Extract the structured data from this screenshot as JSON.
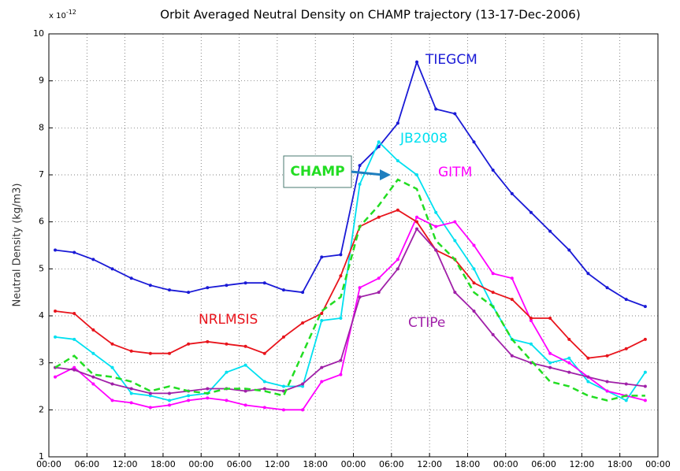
{
  "chart_data": {
    "type": "line",
    "title": "Orbit Averaged Neutral Density on CHAMP trajectory (13-17-Dec-2006)",
    "y_label": "Neutral Density (kg/m3)",
    "y_exponent": {
      "base": "x 10",
      "power": "-12"
    },
    "x": [
      1,
      4,
      7,
      10,
      13,
      16,
      19,
      22,
      25,
      28,
      31,
      34,
      37,
      40,
      43,
      46,
      49,
      52,
      55,
      58,
      61,
      64,
      67,
      70,
      73,
      76,
      79,
      82,
      85,
      88,
      91,
      94
    ],
    "xlim": [
      0,
      96
    ],
    "xticks": [
      {
        "value": 0,
        "label": "00:00"
      },
      {
        "value": 6,
        "label": "06:00"
      },
      {
        "value": 12,
        "label": "12:00"
      },
      {
        "value": 18,
        "label": "18:00"
      },
      {
        "value": 24,
        "label": "00:00"
      },
      {
        "value": 30,
        "label": "06:00"
      },
      {
        "value": 36,
        "label": "12:00"
      },
      {
        "value": 42,
        "label": "18:00"
      },
      {
        "value": 48,
        "label": "00:00"
      },
      {
        "value": 54,
        "label": "06:00"
      },
      {
        "value": 60,
        "label": "12:00"
      },
      {
        "value": 66,
        "label": "18:00"
      },
      {
        "value": 72,
        "label": "00:00"
      },
      {
        "value": 78,
        "label": "06:00"
      },
      {
        "value": 84,
        "label": "12:00"
      },
      {
        "value": 90,
        "label": "18:00"
      },
      {
        "value": 96,
        "label": "00:00"
      }
    ],
    "ylim": [
      1,
      10
    ],
    "yticks": [
      1,
      2,
      3,
      4,
      5,
      6,
      7,
      8,
      9,
      10
    ],
    "grid": true,
    "series": [
      {
        "name": "TIEGCM",
        "color": "#1a1ad6",
        "values": [
          5.4,
          5.35,
          5.2,
          5.0,
          4.8,
          4.65,
          4.55,
          4.5,
          4.6,
          4.65,
          4.7,
          4.7,
          4.55,
          4.5,
          5.25,
          5.3,
          7.2,
          7.6,
          8.1,
          9.4,
          8.4,
          8.3,
          7.7,
          7.1,
          6.6,
          6.2,
          5.8,
          5.4,
          4.9,
          4.6,
          4.35,
          4.2
        ]
      },
      {
        "name": "JB2008",
        "color": "#00e0f0",
        "values": [
          3.55,
          3.5,
          3.2,
          2.9,
          2.35,
          2.3,
          2.2,
          2.3,
          2.35,
          2.8,
          2.95,
          2.6,
          2.5,
          2.5,
          3.9,
          3.95,
          6.8,
          7.7,
          7.3,
          7.0,
          6.2,
          5.6,
          5.0,
          4.2,
          3.5,
          3.4,
          3.0,
          3.1,
          2.6,
          2.4,
          2.2,
          2.8
        ]
      },
      {
        "name": "GITM",
        "color": "#ff00ff",
        "values": [
          2.7,
          2.9,
          2.55,
          2.2,
          2.15,
          2.05,
          2.1,
          2.2,
          2.25,
          2.2,
          2.1,
          2.05,
          2.0,
          2.0,
          2.6,
          2.75,
          4.6,
          4.8,
          5.2,
          6.1,
          5.9,
          6.0,
          5.5,
          4.9,
          4.8,
          3.9,
          3.2,
          3.0,
          2.7,
          2.4,
          2.3,
          2.2
        ]
      },
      {
        "name": "NRLMSIS",
        "color": "#e8141c",
        "values": [
          4.1,
          4.05,
          3.7,
          3.4,
          3.25,
          3.2,
          3.2,
          3.4,
          3.45,
          3.4,
          3.35,
          3.2,
          3.55,
          3.85,
          4.05,
          4.85,
          5.9,
          6.1,
          6.25,
          6.0,
          5.4,
          5.2,
          4.7,
          4.5,
          4.35,
          3.95,
          3.95,
          3.5,
          3.1,
          3.15,
          3.3,
          3.5
        ]
      },
      {
        "name": "CTIPe",
        "color": "#a020a8",
        "values": [
          2.9,
          2.85,
          2.7,
          2.55,
          2.45,
          2.35,
          2.35,
          2.4,
          2.45,
          2.45,
          2.4,
          2.45,
          2.4,
          2.55,
          2.9,
          3.05,
          4.4,
          4.5,
          5.0,
          5.85,
          5.4,
          4.5,
          4.1,
          3.6,
          3.15,
          3.0,
          2.9,
          2.8,
          2.7,
          2.6,
          2.55,
          2.5
        ]
      },
      {
        "name": "CHAMP",
        "color": "#22dd22",
        "dashed": true,
        "values": [
          2.9,
          3.15,
          2.75,
          2.7,
          2.6,
          2.4,
          2.5,
          2.4,
          2.35,
          2.45,
          2.45,
          2.4,
          2.3,
          3.2,
          4.1,
          4.4,
          5.9,
          6.35,
          6.9,
          6.7,
          5.6,
          5.2,
          4.5,
          4.2,
          3.5,
          3.05,
          2.6,
          2.5,
          2.3,
          2.2,
          2.3,
          2.3
        ]
      }
    ]
  }
}
